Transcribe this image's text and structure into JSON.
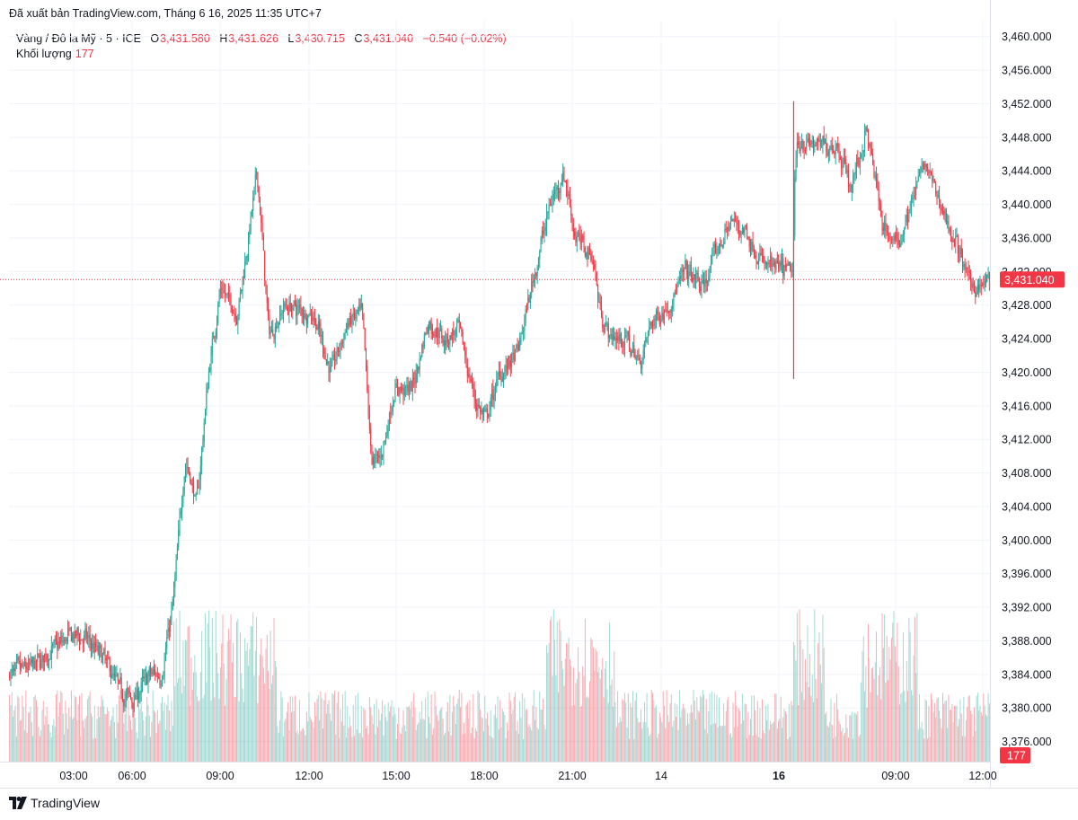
{
  "header": "Đã xuất bản TradingView.com, Tháng 6 16, 2025 11:35 UTC+7",
  "legend": {
    "symbol": "Vàng / Đô la Mỹ · 5 · ICE",
    "o_label": "O",
    "o_value": "3,431.580",
    "h_label": "H",
    "h_value": "3,431.626",
    "l_label": "L",
    "l_value": "3,430.715",
    "c_label": "C",
    "c_value": "3,431.040",
    "change": "−0.540 (−0.02%)",
    "volume_label": "Khối lượng",
    "volume_value": "177"
  },
  "price_badge": "3,431.040",
  "volume_badge": "177",
  "brand": "TradingView",
  "colors": {
    "up": "#26a69a",
    "down": "#f23645",
    "grid": "#f0f3fa"
  },
  "chart_data": {
    "type": "candlestick",
    "y_ticks": [
      3460,
      3456,
      3452,
      3448,
      3444,
      3440,
      3436,
      3432,
      3428,
      3424,
      3420,
      3416,
      3412,
      3408,
      3404,
      3400,
      3396,
      3392,
      3388,
      3384,
      3380,
      3376
    ],
    "y_tick_labels": [
      "3,460.000",
      "3,456.000",
      "3,452.000",
      "3,448.000",
      "3,444.000",
      "3,440.000",
      "3,436.000",
      "3,432.000",
      "3,428.000",
      "3,424.000",
      "3,420.000",
      "3,416.000",
      "3,412.000",
      "3,408.000",
      "3,404.000",
      "3,400.000",
      "3,396.000",
      "3,392.000",
      "3,388.000",
      "3,384.000",
      "3,380.000",
      "3,376.000"
    ],
    "ylim": [
      3373.6,
      3462.0
    ],
    "x_tick_labels": [
      "03:00",
      "06:00",
      "09:00",
      "12:00",
      "15:00",
      "18:00",
      "21:00",
      "14",
      "16",
      "09:00",
      "12:00"
    ],
    "x_tick_bold": [
      false,
      false,
      false,
      false,
      false,
      false,
      false,
      false,
      true,
      false,
      false
    ],
    "last_price": 3431.04,
    "price_path": [
      {
        "bar": 0,
        "price": 3384
      },
      {
        "bar": 20,
        "price": 3385
      },
      {
        "bar": 50,
        "price": 3388.5
      },
      {
        "bar": 62,
        "price": 3388.5
      },
      {
        "bar": 80,
        "price": 3386
      },
      {
        "bar": 95,
        "price": 3382
      },
      {
        "bar": 105,
        "price": 3381
      },
      {
        "bar": 120,
        "price": 3384
      },
      {
        "bar": 130,
        "price": 3384
      },
      {
        "bar": 140,
        "price": 3393
      },
      {
        "bar": 150,
        "price": 3410
      },
      {
        "bar": 160,
        "price": 3404
      },
      {
        "bar": 170,
        "price": 3420
      },
      {
        "bar": 180,
        "price": 3430
      },
      {
        "bar": 195,
        "price": 3427
      },
      {
        "bar": 205,
        "price": 3437
      },
      {
        "bar": 212,
        "price": 3444
      },
      {
        "bar": 222,
        "price": 3424
      },
      {
        "bar": 235,
        "price": 3428
      },
      {
        "bar": 260,
        "price": 3427
      },
      {
        "bar": 275,
        "price": 3420
      },
      {
        "bar": 290,
        "price": 3426
      },
      {
        "bar": 302,
        "price": 3427
      },
      {
        "bar": 310,
        "price": 3409
      },
      {
        "bar": 318,
        "price": 3410
      },
      {
        "bar": 330,
        "price": 3418
      },
      {
        "bar": 345,
        "price": 3418
      },
      {
        "bar": 358,
        "price": 3426
      },
      {
        "bar": 372,
        "price": 3424
      },
      {
        "bar": 385,
        "price": 3425
      },
      {
        "bar": 398,
        "price": 3417
      },
      {
        "bar": 408,
        "price": 3414
      },
      {
        "bar": 420,
        "price": 3420
      },
      {
        "bar": 435,
        "price": 3422
      },
      {
        "bar": 450,
        "price": 3432
      },
      {
        "bar": 463,
        "price": 3440
      },
      {
        "bar": 475,
        "price": 3444
      },
      {
        "bar": 485,
        "price": 3436
      },
      {
        "bar": 500,
        "price": 3434
      },
      {
        "bar": 505,
        "price": 3428
      },
      {
        "bar": 515,
        "price": 3424
      },
      {
        "bar": 528,
        "price": 3424
      },
      {
        "bar": 540,
        "price": 3421
      },
      {
        "bar": 550,
        "price": 3426
      },
      {
        "bar": 565,
        "price": 3428
      },
      {
        "bar": 580,
        "price": 3432
      },
      {
        "bar": 595,
        "price": 3430
      },
      {
        "bar": 605,
        "price": 3434
      },
      {
        "bar": 618,
        "price": 3438
      },
      {
        "bar": 630,
        "price": 3437
      },
      {
        "bar": 645,
        "price": 3433
      },
      {
        "bar": 665,
        "price": 3432
      },
      {
        "bar": 672,
        "price": 3432
      },
      {
        "bar": 674,
        "price": 3448
      },
      {
        "bar": 690,
        "price": 3447
      },
      {
        "bar": 710,
        "price": 3447
      },
      {
        "bar": 722,
        "price": 3442
      },
      {
        "bar": 735,
        "price": 3449
      },
      {
        "bar": 748,
        "price": 3438
      },
      {
        "bar": 760,
        "price": 3435
      },
      {
        "bar": 775,
        "price": 3441
      },
      {
        "bar": 785,
        "price": 3445
      },
      {
        "bar": 795,
        "price": 3441
      },
      {
        "bar": 810,
        "price": 3436
      },
      {
        "bar": 822,
        "price": 3431
      },
      {
        "bar": 832,
        "price": 3430
      },
      {
        "bar": 840,
        "price": 3431
      }
    ],
    "spikes": [
      {
        "bar": 673,
        "high": 3452.3,
        "low": 3419.2
      }
    ]
  }
}
